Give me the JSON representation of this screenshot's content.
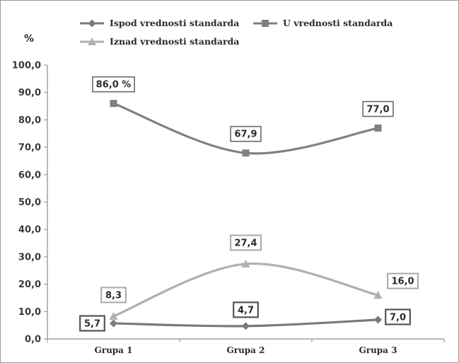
{
  "chart_data": {
    "type": "line",
    "ylabel": "%",
    "categories": [
      "Grupa 1",
      "Grupa 2",
      "Grupa 3"
    ],
    "ylim": [
      0,
      100
    ],
    "yticks": [
      "0,0",
      "10,0",
      "20,0",
      "30,0",
      "40,0",
      "50,0",
      "60,0",
      "70,0",
      "80,0",
      "90,0",
      "100,0"
    ],
    "grid": false,
    "legend_position": "top",
    "series": [
      {
        "name": "Ispod vrednosti standarda",
        "values": [
          5.7,
          4.7,
          7.0
        ],
        "labels": [
          "5,7",
          "4,7",
          "7,0"
        ],
        "marker": "diamond",
        "color": "#7a7a7a"
      },
      {
        "name": "U vrednosti standarda",
        "values": [
          86.0,
          67.9,
          77.0
        ],
        "labels": [
          "86,0 %",
          "67,9",
          "77,0"
        ],
        "marker": "square",
        "color": "#808080"
      },
      {
        "name": "Iznad vrednosti standarda",
        "values": [
          8.3,
          27.4,
          16.0
        ],
        "labels": [
          "8,3",
          "27,4",
          "16,0"
        ],
        "marker": "triangle",
        "color": "#b0b0b0"
      }
    ]
  }
}
